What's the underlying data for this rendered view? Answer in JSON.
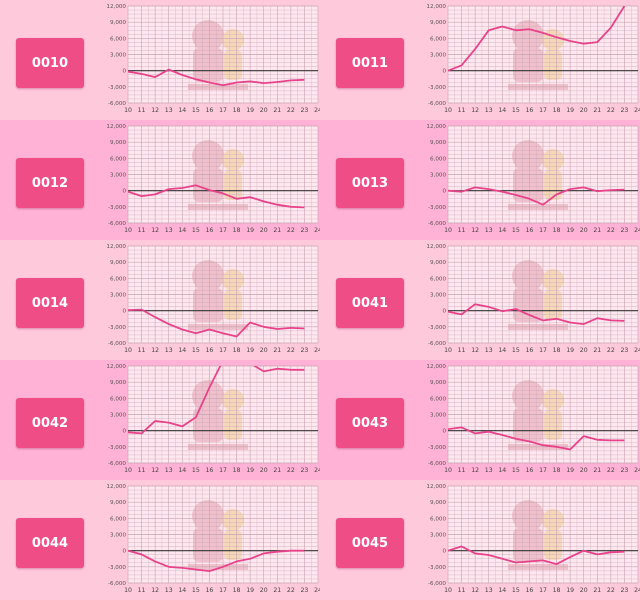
{
  "colors": {
    "row_a": "#ffc9dc",
    "row_b": "#ffb2d6",
    "plot_bg": "#ffe7f0",
    "button": "#ee4d86",
    "line": "#e8438a",
    "zero_line": "#333333",
    "grid": "#c4a4b0"
  },
  "decor": {
    "watermark": "mascot-watermark"
  },
  "chart_data": [
    {
      "type": "line",
      "label": "0010",
      "x": [
        10,
        11,
        12,
        13,
        14,
        15,
        16,
        17,
        18,
        19,
        20,
        21,
        22,
        23
      ],
      "values": [
        -200,
        -600,
        -1200,
        200,
        -800,
        -1600,
        -2200,
        -2700,
        -2200,
        -2000,
        -2300,
        -2100,
        -1800,
        -1700
      ],
      "ylim": [
        -6000,
        12000
      ],
      "xlim": [
        10,
        24
      ],
      "yticks": [
        "12,000",
        "9,000",
        "6,000",
        "3,000",
        "0",
        "-3,000",
        "-6,000"
      ],
      "xticks": [
        "10",
        "11",
        "12",
        "13",
        "14",
        "15",
        "16",
        "17",
        "18",
        "19",
        "20",
        "21",
        "22",
        "23",
        "24"
      ]
    },
    {
      "type": "line",
      "label": "0011",
      "x": [
        10,
        11,
        12,
        13,
        14,
        15,
        16,
        17,
        18,
        19,
        20,
        21,
        22,
        23
      ],
      "values": [
        0,
        1000,
        4000,
        7500,
        8200,
        7500,
        7700,
        7000,
        6200,
        5500,
        5000,
        5300,
        8000,
        12000
      ],
      "ylim": [
        -6000,
        12000
      ],
      "xlim": [
        10,
        24
      ],
      "yticks": [
        "12,000",
        "9,000",
        "6,000",
        "3,000",
        "0",
        "-3,000",
        "-6,000"
      ],
      "xticks": [
        "10",
        "11",
        "12",
        "13",
        "14",
        "15",
        "16",
        "17",
        "18",
        "19",
        "20",
        "21",
        "22",
        "23",
        "24"
      ]
    },
    {
      "type": "line",
      "label": "0012",
      "x": [
        10,
        11,
        12,
        13,
        14,
        15,
        16,
        17,
        18,
        19,
        20,
        21,
        22,
        23
      ],
      "values": [
        -200,
        -1000,
        -700,
        300,
        500,
        1000,
        100,
        -500,
        -1500,
        -1200,
        -2000,
        -2600,
        -3000,
        -3100
      ],
      "ylim": [
        -6000,
        12000
      ],
      "xlim": [
        10,
        24
      ],
      "yticks": [
        "12,000",
        "9,000",
        "6,000",
        "3,000",
        "0",
        "-3,000",
        "-6,000"
      ],
      "xticks": [
        "10",
        "11",
        "12",
        "13",
        "14",
        "15",
        "16",
        "17",
        "18",
        "19",
        "20",
        "21",
        "22",
        "23",
        "24"
      ]
    },
    {
      "type": "line",
      "label": "0013",
      "x": [
        10,
        11,
        12,
        13,
        14,
        15,
        16,
        17,
        18,
        19,
        20,
        21,
        22,
        23
      ],
      "values": [
        0,
        -200,
        600,
        300,
        -200,
        -800,
        -1500,
        -2600,
        -700,
        300,
        600,
        -100,
        100,
        200
      ],
      "ylim": [
        -6000,
        12000
      ],
      "xlim": [
        10,
        24
      ],
      "yticks": [
        "12,000",
        "9,000",
        "6,000",
        "3,000",
        "0",
        "-3,000",
        "-6,000"
      ],
      "xticks": [
        "10",
        "11",
        "12",
        "13",
        "14",
        "15",
        "16",
        "17",
        "18",
        "19",
        "20",
        "21",
        "22",
        "23",
        "24"
      ]
    },
    {
      "type": "line",
      "label": "0014",
      "x": [
        10,
        11,
        12,
        13,
        14,
        15,
        16,
        17,
        18,
        19,
        20,
        21,
        22,
        23
      ],
      "values": [
        100,
        200,
        -1200,
        -2500,
        -3500,
        -4200,
        -3500,
        -4200,
        -4800,
        -2200,
        -3000,
        -3400,
        -3200,
        -3300
      ],
      "ylim": [
        -6000,
        12000
      ],
      "xlim": [
        10,
        24
      ],
      "yticks": [
        "12,000",
        "9,000",
        "6,000",
        "3,000",
        "0",
        "-3,000",
        "-6,000"
      ],
      "xticks": [
        "10",
        "11",
        "12",
        "13",
        "14",
        "15",
        "16",
        "17",
        "18",
        "19",
        "20",
        "21",
        "22",
        "23",
        "24"
      ]
    },
    {
      "type": "line",
      "label": "0041",
      "x": [
        10,
        11,
        12,
        13,
        14,
        15,
        16,
        17,
        18,
        19,
        20,
        21,
        22,
        23
      ],
      "values": [
        -200,
        -700,
        1200,
        700,
        -100,
        300,
        -800,
        -1800,
        -1500,
        -2200,
        -2500,
        -1400,
        -1800,
        -1900
      ],
      "ylim": [
        -6000,
        12000
      ],
      "xlim": [
        10,
        24
      ],
      "yticks": [
        "12,000",
        "9,000",
        "6,000",
        "3,000",
        "0",
        "-3,000",
        "-6,000"
      ],
      "xticks": [
        "10",
        "11",
        "12",
        "13",
        "14",
        "15",
        "16",
        "17",
        "18",
        "19",
        "20",
        "21",
        "22",
        "23",
        "24"
      ]
    },
    {
      "type": "line",
      "label": "0042",
      "x": [
        10,
        11,
        12,
        13,
        14,
        15,
        16,
        17,
        18,
        19,
        20,
        21,
        22,
        23
      ],
      "values": [
        -300,
        -500,
        1800,
        1500,
        800,
        2500,
        8000,
        13000,
        14500,
        12500,
        11000,
        11500,
        11300,
        11300
      ],
      "ylim": [
        -6000,
        12000
      ],
      "xlim": [
        10,
        24
      ],
      "yticks": [
        "12,000",
        "9,000",
        "6,000",
        "3,000",
        "0",
        "-3,000",
        "-6,000"
      ],
      "xticks": [
        "10",
        "11",
        "12",
        "13",
        "14",
        "15",
        "16",
        "17",
        "18",
        "19",
        "20",
        "21",
        "22",
        "23",
        "24"
      ]
    },
    {
      "type": "line",
      "label": "0043",
      "x": [
        10,
        11,
        12,
        13,
        14,
        15,
        16,
        17,
        18,
        19,
        20,
        21,
        22,
        23
      ],
      "values": [
        300,
        600,
        -500,
        -200,
        -800,
        -1500,
        -2000,
        -2700,
        -3000,
        -3500,
        -1000,
        -1700,
        -1800,
        -1800
      ],
      "ylim": [
        -6000,
        12000
      ],
      "xlim": [
        10,
        24
      ],
      "yticks": [
        "12,000",
        "9,000",
        "6,000",
        "3,000",
        "0",
        "-3,000",
        "-6,000"
      ],
      "xticks": [
        "10",
        "11",
        "12",
        "13",
        "14",
        "15",
        "16",
        "17",
        "18",
        "19",
        "20",
        "21",
        "22",
        "23",
        "24"
      ]
    },
    {
      "type": "line",
      "label": "0044",
      "x": [
        10,
        11,
        12,
        13,
        14,
        15,
        16,
        17,
        18,
        19,
        20,
        21,
        22,
        23
      ],
      "values": [
        0,
        -700,
        -2000,
        -3000,
        -3200,
        -3500,
        -3800,
        -3000,
        -2000,
        -1500,
        -500,
        -200,
        0,
        0
      ],
      "ylim": [
        -6000,
        12000
      ],
      "xlim": [
        10,
        24
      ],
      "yticks": [
        "12,000",
        "9,000",
        "6,000",
        "3,000",
        "0",
        "-3,000",
        "-6,000"
      ],
      "xticks": [
        "10",
        "11",
        "12",
        "13",
        "14",
        "15",
        "16",
        "17",
        "18",
        "19",
        "20",
        "21",
        "22",
        "23",
        "24"
      ]
    },
    {
      "type": "line",
      "label": "0045",
      "x": [
        10,
        11,
        12,
        13,
        14,
        15,
        16,
        17,
        18,
        19,
        20,
        21,
        22,
        23
      ],
      "values": [
        0,
        800,
        -500,
        -800,
        -1500,
        -2200,
        -2000,
        -1800,
        -2500,
        -1200,
        0,
        -700,
        -300,
        -200
      ],
      "ylim": [
        -6000,
        12000
      ],
      "xlim": [
        10,
        24
      ],
      "yticks": [
        "12,000",
        "9,000",
        "6,000",
        "3,000",
        "0",
        "-3,000",
        "-6,000"
      ],
      "xticks": [
        "10",
        "11",
        "12",
        "13",
        "14",
        "15",
        "16",
        "17",
        "18",
        "19",
        "20",
        "21",
        "22",
        "23",
        "24"
      ]
    }
  ]
}
